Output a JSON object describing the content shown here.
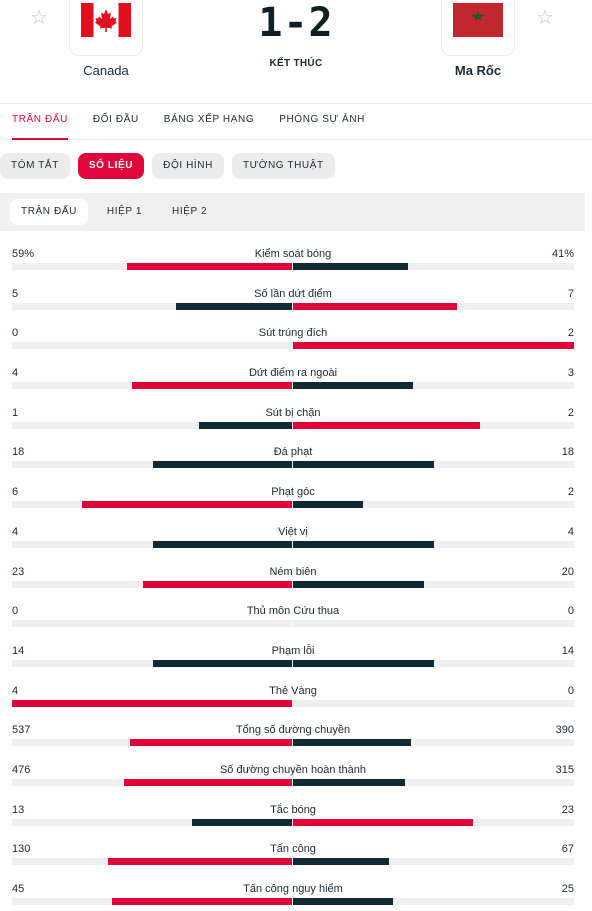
{
  "colors": {
    "accent": "#e0063a",
    "dark": "#0f2a33"
  },
  "header": {
    "home": {
      "name": "Canada",
      "flag_icon": "canada-flag-icon"
    },
    "away": {
      "name": "Ma Rốc",
      "flag_icon": "morocco-flag-icon"
    },
    "score": "1-2",
    "status": "KẾT THÚC"
  },
  "main_tabs": [
    "TRẬN ĐẤU",
    "ĐỐI ĐẦU",
    "BẢNG XẾP HẠNG",
    "PHÓNG SỰ ẢNH"
  ],
  "sub_tabs": [
    "TÓM TẮT",
    "SỐ LIỆU",
    "ĐỘI HÌNH",
    "TƯỜNG THUẬT"
  ],
  "period_tabs": [
    "TRẬN ĐẤU",
    "HIỆP 1",
    "HIỆP 2"
  ],
  "stats": [
    {
      "name": "Kiểm soát bóng",
      "home": "59%",
      "away": "41%",
      "hv": 59,
      "av": 41
    },
    {
      "name": "Số lần dứt điểm",
      "home": "5",
      "away": "7",
      "hv": 5,
      "av": 7
    },
    {
      "name": "Sút trúng đích",
      "home": "0",
      "away": "2",
      "hv": 0,
      "av": 2
    },
    {
      "name": "Dứt điểm ra ngoài",
      "home": "4",
      "away": "3",
      "hv": 4,
      "av": 3
    },
    {
      "name": "Sút bị chặn",
      "home": "1",
      "away": "2",
      "hv": 1,
      "av": 2
    },
    {
      "name": "Đá phạt",
      "home": "18",
      "away": "18",
      "hv": 18,
      "av": 18
    },
    {
      "name": "Phạt góc",
      "home": "6",
      "away": "2",
      "hv": 6,
      "av": 2
    },
    {
      "name": "Việt vị",
      "home": "4",
      "away": "4",
      "hv": 4,
      "av": 4
    },
    {
      "name": "Ném biên",
      "home": "23",
      "away": "20",
      "hv": 23,
      "av": 20
    },
    {
      "name": "Thủ môn Cứu thua",
      "home": "0",
      "away": "0",
      "hv": 0,
      "av": 0
    },
    {
      "name": "Phạm lỗi",
      "home": "14",
      "away": "14",
      "hv": 14,
      "av": 14
    },
    {
      "name": "Thẻ Vàng",
      "home": "4",
      "away": "0",
      "hv": 4,
      "av": 0
    },
    {
      "name": "Tổng số đường chuyền",
      "home": "537",
      "away": "390",
      "hv": 537,
      "av": 390
    },
    {
      "name": "Số đường chuyền hoàn thành",
      "home": "476",
      "away": "315",
      "hv": 476,
      "av": 315
    },
    {
      "name": "Tắc bóng",
      "home": "13",
      "away": "23",
      "hv": 13,
      "av": 23
    },
    {
      "name": "Tấn công",
      "home": "130",
      "away": "67",
      "hv": 130,
      "av": 67
    },
    {
      "name": "Tấn công nguy hiểm",
      "home": "45",
      "away": "25",
      "hv": 45,
      "av": 25
    }
  ]
}
